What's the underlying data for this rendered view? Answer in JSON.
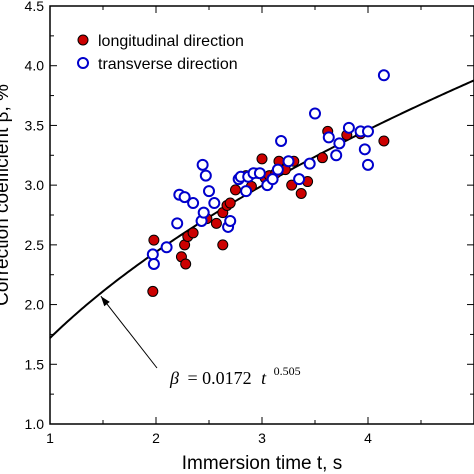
{
  "chart_data": {
    "type": "scatter",
    "xlabel": "Immersion time t, s",
    "ylabel": "Correction coefficient β, %",
    "xlim": [
      1,
      5
    ],
    "ylim": [
      1.0,
      4.5
    ],
    "xticks": [
      "1",
      "2",
      "3",
      "4"
    ],
    "yticks": [
      "1.0",
      "1.5",
      "2.0",
      "2.5",
      "3.0",
      "3.5",
      "4.0",
      "4.5"
    ],
    "legend_position": "top-left",
    "series": [
      {
        "name": "longitudinal direction",
        "marker": "filled-circle",
        "color": "#cc0000",
        "points": [
          [
            1.97,
            2.11
          ],
          [
            1.98,
            2.54
          ],
          [
            2.24,
            2.4
          ],
          [
            2.28,
            2.34
          ],
          [
            2.27,
            2.5
          ],
          [
            2.3,
            2.57
          ],
          [
            2.35,
            2.6
          ],
          [
            2.48,
            2.72
          ],
          [
            2.55,
            2.85
          ],
          [
            2.57,
            2.68
          ],
          [
            2.63,
            2.5
          ],
          [
            2.63,
            2.77
          ],
          [
            2.67,
            2.83
          ],
          [
            2.7,
            2.85
          ],
          [
            2.75,
            2.96
          ],
          [
            2.85,
            3.08
          ],
          [
            2.9,
            2.99
          ],
          [
            2.95,
            3.1
          ],
          [
            3.0,
            3.22
          ],
          [
            3.03,
            3.06
          ],
          [
            3.07,
            3.08
          ],
          [
            3.13,
            3.1
          ],
          [
            3.16,
            3.2
          ],
          [
            3.22,
            3.13
          ],
          [
            3.28,
            3.0
          ],
          [
            3.3,
            3.2
          ],
          [
            3.37,
            2.93
          ],
          [
            3.43,
            3.03
          ],
          [
            3.57,
            3.23
          ],
          [
            3.62,
            3.45
          ],
          [
            3.8,
            3.42
          ],
          [
            3.93,
            3.43
          ],
          [
            4.15,
            3.37
          ]
        ]
      },
      {
        "name": "transverse direction",
        "marker": "open-circle",
        "color": "#0000cc",
        "points": [
          [
            1.97,
            2.42
          ],
          [
            1.98,
            2.34
          ],
          [
            2.1,
            2.48
          ],
          [
            2.22,
            2.92
          ],
          [
            2.2,
            2.68
          ],
          [
            2.27,
            2.9
          ],
          [
            2.35,
            2.85
          ],
          [
            2.43,
            2.7
          ],
          [
            2.44,
            3.17
          ],
          [
            2.45,
            2.77
          ],
          [
            2.47,
            3.08
          ],
          [
            2.5,
            2.95
          ],
          [
            2.55,
            2.85
          ],
          [
            2.68,
            2.65
          ],
          [
            2.7,
            2.7
          ],
          [
            2.78,
            3.05
          ],
          [
            2.8,
            3.07
          ],
          [
            2.85,
            2.95
          ],
          [
            2.87,
            3.07
          ],
          [
            2.92,
            3.1
          ],
          [
            2.98,
            3.1
          ],
          [
            3.05,
            3.0
          ],
          [
            3.1,
            3.05
          ],
          [
            3.15,
            3.13
          ],
          [
            3.18,
            3.37
          ],
          [
            3.25,
            3.2
          ],
          [
            3.35,
            3.05
          ],
          [
            3.45,
            3.18
          ],
          [
            3.5,
            3.6
          ],
          [
            3.63,
            3.4
          ],
          [
            3.7,
            3.25
          ],
          [
            3.73,
            3.35
          ],
          [
            3.82,
            3.48
          ],
          [
            3.93,
            3.45
          ],
          [
            3.97,
            3.3
          ],
          [
            4.0,
            3.17
          ],
          [
            4.0,
            3.45
          ],
          [
            4.15,
            3.92
          ]
        ]
      }
    ],
    "fit_curve": {
      "color": "#000000",
      "x_start": 1.0,
      "x_end": 5.0,
      "equation": {
        "beta": "β",
        "middle": "= 0.0172",
        "var": "t",
        "exponent": "0.505"
      },
      "arrow_target": [
        1.48,
        2.07
      ]
    }
  }
}
